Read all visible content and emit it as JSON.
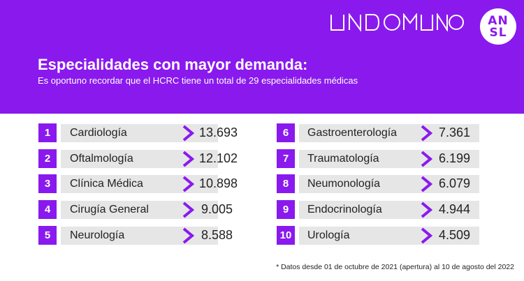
{
  "header": {
    "brand_logo": "UNDOMUNDO",
    "badge_line1": "AN",
    "badge_line2": "SL",
    "title": "Especialidades con mayor demanda:",
    "subtitle": "Es oportuno recordar que el HCRC tiene un total de 29 especialidades médicas"
  },
  "ranking": [
    {
      "rank": "1",
      "name": "Cardiología",
      "value": "13.693"
    },
    {
      "rank": "2",
      "name": "Oftalmología",
      "value": "12.102"
    },
    {
      "rank": "3",
      "name": "Clínica Médica",
      "value": "10.898"
    },
    {
      "rank": "4",
      "name": "Cirugía General",
      "value": "9.005"
    },
    {
      "rank": "5",
      "name": "Neurología",
      "value": "8.588"
    },
    {
      "rank": "6",
      "name": "Gastroenterología",
      "value": "7.361"
    },
    {
      "rank": "7",
      "name": "Traumatología",
      "value": "6.199"
    },
    {
      "rank": "8",
      "name": "Neumonología",
      "value": "6.079"
    },
    {
      "rank": "9",
      "name": "Endocrinología",
      "value": "4.944"
    },
    {
      "rank": "10",
      "name": "Urología",
      "value": "4.509"
    }
  ],
  "footnote": "* Datos desde 01 de octubre de 2021 (apertura) al 10 de agosto del 2022",
  "colors": {
    "accent": "#8a19ee",
    "bar": "#e6e6e6",
    "text": "#222222"
  }
}
